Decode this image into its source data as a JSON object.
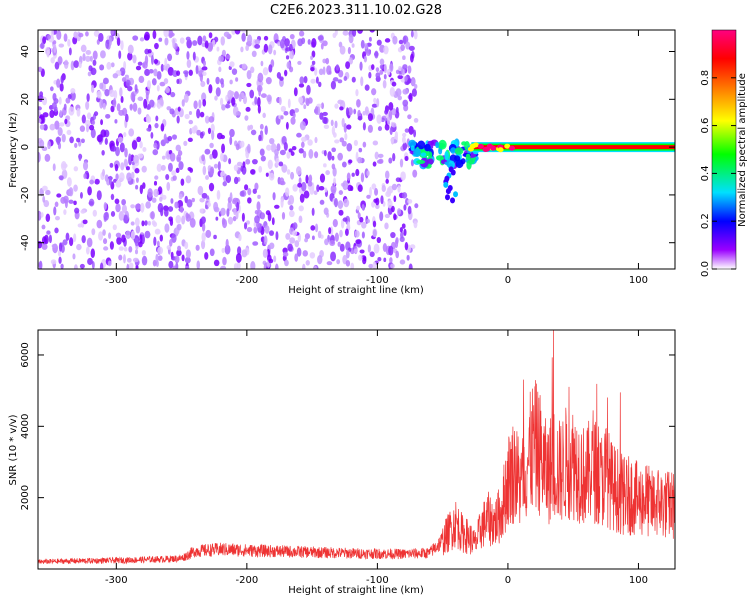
{
  "title": "C2E6.2023.311.10.02.G28",
  "chart_data": [
    {
      "type": "heatmap",
      "title": "C2E6.2023.311.10.02.G28",
      "xlabel": "Height of straight line (km)",
      "ylabel": "Frequency (Hz)",
      "xlim": [
        -360,
        128
      ],
      "ylim": [
        -51,
        49
      ],
      "x_ticks": [
        -300,
        -200,
        -100,
        0,
        100
      ],
      "y_ticks": [
        -40,
        -20,
        0,
        20,
        40
      ],
      "colorbar": {
        "label": "Normalized spectral amplitude",
        "range": [
          0,
          1
        ],
        "ticks": [
          0.0,
          0.2,
          0.4,
          0.6,
          0.8
        ],
        "colors": [
          "#ffffff",
          "#9a00ff",
          "#0000ff",
          "#00e0ff",
          "#00ff00",
          "#ffff00",
          "#ff8000",
          "#ff0000",
          "#ff0080"
        ]
      },
      "regions": [
        {
          "x": [
            -360,
            -70
          ],
          "freq": [
            -51,
            49
          ],
          "amplitude": 0.1
        },
        {
          "x": [
            -70,
            -30
          ],
          "freq": [
            -25,
            10
          ],
          "amplitude": 0.3
        },
        {
          "x": [
            -30,
            128
          ],
          "freq": [
            -1,
            1
          ],
          "amplitude": 0.9
        }
      ]
    },
    {
      "type": "line",
      "xlabel": "Height of straight line (km)",
      "ylabel": "SNR (10 * v/v)",
      "xlim": [
        -360,
        128
      ],
      "ylim": [
        0,
        6700
      ],
      "x_ticks": [
        -300,
        -200,
        -100,
        0,
        100
      ],
      "y_ticks": [
        2000,
        4000,
        6000
      ],
      "color": "#ee3333",
      "series": [
        {
          "x": [
            -360,
            -340,
            -320,
            -300,
            -280,
            -260,
            -250,
            -240,
            -220,
            -200,
            -180,
            -160,
            -140,
            -120,
            -100,
            -80,
            -60,
            -50,
            -40,
            -35,
            -30,
            -25,
            -20,
            -15,
            -10,
            -5,
            0,
            5,
            10,
            15,
            20,
            25,
            30,
            35,
            40,
            45,
            50,
            55,
            60,
            65,
            70,
            75,
            80,
            85,
            90,
            95,
            100,
            105,
            110,
            115,
            120,
            128
          ],
          "y": [
            200,
            220,
            230,
            240,
            260,
            280,
            300,
            500,
            550,
            520,
            500,
            480,
            460,
            440,
            430,
            420,
            450,
            800,
            1300,
            1000,
            900,
            700,
            1200,
            1400,
            1300,
            1600,
            2500,
            2800,
            2300,
            3000,
            3500,
            3200,
            2600,
            3000,
            2700,
            3000,
            3000,
            2800,
            2500,
            3000,
            2400,
            2700,
            2300,
            2200,
            2000,
            2100,
            1900,
            2000,
            1800,
            1900,
            1800,
            1800
          ]
        }
      ]
    }
  ]
}
